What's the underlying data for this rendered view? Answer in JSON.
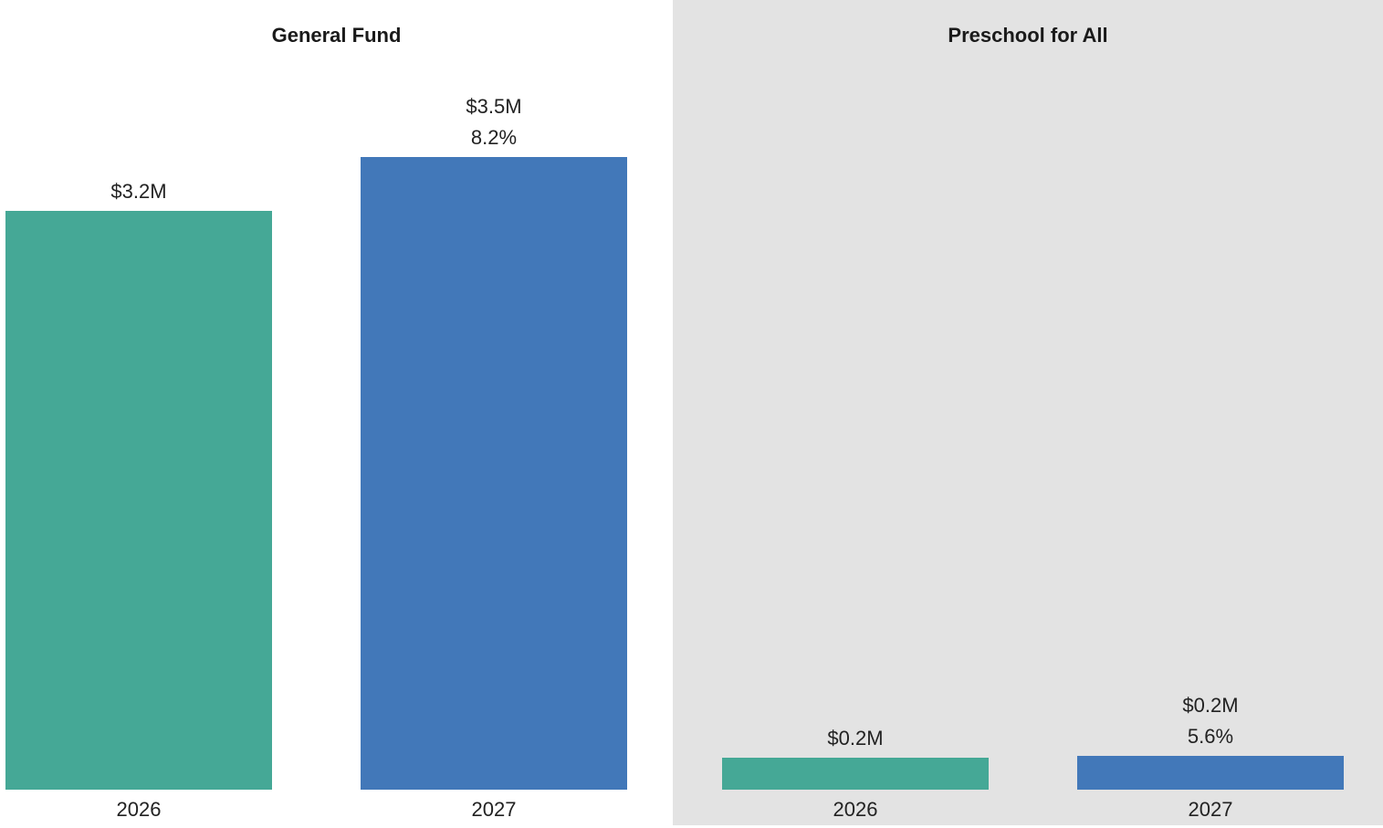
{
  "colors": {
    "y2026": "#45a896",
    "y2027": "#4278b9"
  },
  "chart_data": [
    {
      "type": "bar",
      "title": "General Fund",
      "categories": [
        "2026",
        "2027"
      ],
      "values": [
        3.2,
        3.5
      ],
      "value_labels": [
        "$3.2M",
        "$3.5M"
      ],
      "pct_labels": [
        "",
        "8.2%"
      ],
      "unit": "$M",
      "ylim": [
        0,
        3.8
      ],
      "grid": false
    },
    {
      "type": "bar",
      "title": "Preschool for All",
      "categories": [
        "2026",
        "2027"
      ],
      "values": [
        0.2,
        0.2
      ],
      "value_labels": [
        "$0.2M",
        "$0.2M"
      ],
      "pct_labels": [
        "",
        "5.6%"
      ],
      "unit": "$M",
      "ylim": [
        0,
        3.8
      ],
      "grid": false
    }
  ]
}
